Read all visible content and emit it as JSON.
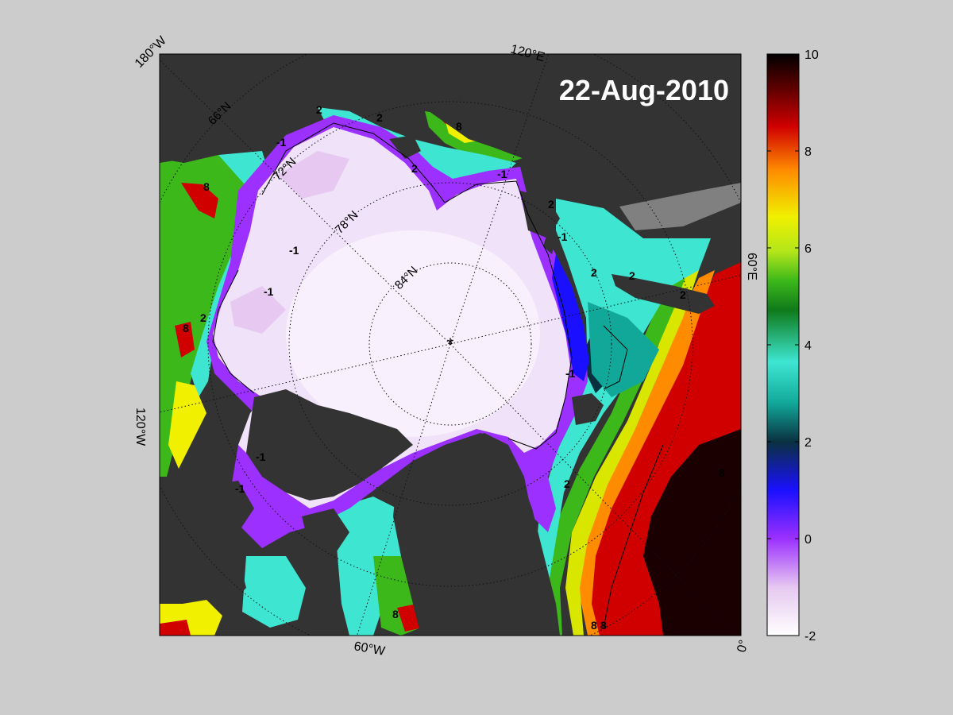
{
  "map": {
    "date_label": "22-Aug-2010",
    "lon_labels": {
      "w180": "180°W",
      "e120": "120°E",
      "e60": "60°E",
      "zero": "0°",
      "w60": "60°W",
      "w120": "120°W"
    },
    "lat_labels": {
      "n66": "66°N",
      "n72": "72°N",
      "n78": "78°N",
      "n84": "84°N"
    },
    "contour_labels": [
      "-1",
      "-1",
      "-1",
      "-1",
      "-1",
      "-1",
      "-1",
      "-1",
      "2",
      "2",
      "2",
      "2",
      "2",
      "2",
      "2",
      "2",
      "2",
      "8",
      "8",
      "8",
      "8",
      "8",
      "8",
      "8"
    ],
    "pole_marker": "*"
  },
  "colorbar": {
    "tick_labels": [
      "10",
      "8",
      "6",
      "4",
      "2",
      "0",
      "-2"
    ],
    "min": -2,
    "max": 10,
    "colors": {
      "c_neg2": "#ffffff",
      "c_neg1": "#e6c8f0",
      "c_0": "#9b30ff",
      "c_1": "#1a10ff",
      "c_2": "#0a3040",
      "c_3": "#11a89a",
      "c_4": "#3ee6d2",
      "c_5": "#0f7a1a",
      "c_6": "#b2e61a",
      "c_7": "#f0f000",
      "c_8": "#ff8c00",
      "c_9": "#d00000",
      "c_10": "#000000"
    }
  },
  "palette": {
    "background": "#cccccc",
    "land": "#333333",
    "no_data": "#808080",
    "ice": "#f3e6f8"
  }
}
